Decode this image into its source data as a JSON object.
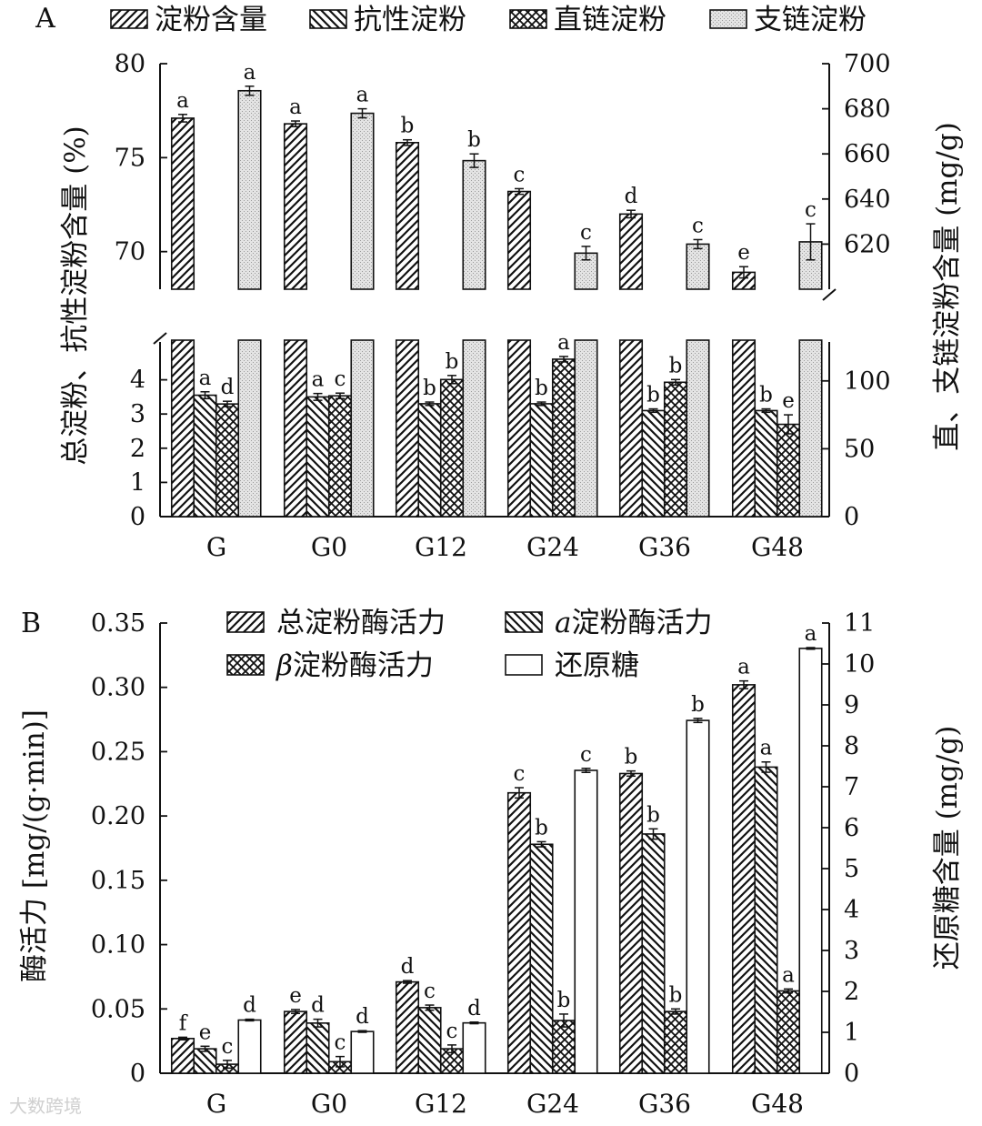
{
  "chart_data": [
    {
      "panel": "A",
      "type": "bar",
      "categories": [
        "G",
        "G0",
        "G12",
        "G24",
        "G36",
        "G48"
      ],
      "series": [
        {
          "name": "淀粉含量",
          "axis": "left",
          "pattern": "hatch-fwd",
          "values": [
            77.1,
            76.8,
            75.8,
            73.2,
            72.0,
            68.9
          ],
          "errors": [
            0.2,
            0.15,
            0.15,
            0.15,
            0.2,
            0.3
          ],
          "letters": [
            "a",
            "a",
            "b",
            "c",
            "d",
            "e"
          ]
        },
        {
          "name": "抗性淀粉",
          "axis": "left",
          "pattern": "hatch-back",
          "values": [
            3.55,
            3.5,
            3.3,
            3.3,
            3.1,
            3.1
          ],
          "errors": [
            0.1,
            0.1,
            0.05,
            0.05,
            0.05,
            0.05
          ],
          "letters": [
            "a",
            "a",
            "b",
            "b",
            "b",
            "b"
          ]
        },
        {
          "name": "直链淀粉",
          "axis": "right",
          "pattern": "crosshatch",
          "values": [
            83,
            89,
            101,
            116,
            99,
            68
          ],
          "errors": [
            2,
            2,
            3,
            2,
            2,
            7
          ],
          "letters": [
            "d",
            "c",
            "b",
            "a",
            "b",
            "e"
          ]
        },
        {
          "name": "支链淀粉",
          "axis": "right",
          "pattern": "dots",
          "values": [
            688,
            678,
            657,
            616,
            620,
            621
          ],
          "errors": [
            2,
            2,
            3,
            3,
            2,
            8
          ],
          "letters": [
            "a",
            "a",
            "b",
            "c",
            "c",
            "c"
          ]
        }
      ],
      "panel_label": "A",
      "ylabel_left": "总淀粉、抗性淀粉含量 (%)",
      "ylabel_right": "直、支链淀粉含量 (mg/g)",
      "left_axis_upper": {
        "range": [
          68,
          80
        ],
        "ticks": [
          "70",
          "75",
          "80"
        ]
      },
      "left_axis_lower": {
        "range": [
          0,
          5
        ],
        "ticks": [
          "0",
          "1",
          "2",
          "3",
          "4"
        ]
      },
      "right_axis_upper": {
        "range": [
          600,
          700
        ],
        "ticks": [
          "620",
          "640",
          "660",
          "680",
          "700"
        ]
      },
      "right_axis_lower": {
        "range": [
          0,
          126
        ],
        "ticks": [
          "0",
          "50",
          "100"
        ]
      }
    },
    {
      "panel": "B",
      "type": "bar",
      "categories": [
        "G",
        "G0",
        "G12",
        "G24",
        "G36",
        "G48"
      ],
      "series": [
        {
          "name": "总淀粉酶活力",
          "axis": "left",
          "pattern": "hatch-fwd",
          "values": [
            0.027,
            0.048,
            0.071,
            0.218,
            0.233,
            0.302
          ],
          "errors": [
            0.001,
            0.0015,
            0.001,
            0.004,
            0.002,
            0.003
          ],
          "letters": [
            "f",
            "e",
            "d",
            "c",
            "b",
            "a"
          ]
        },
        {
          "name": "a淀粉酶活力",
          "name_prefix": "a",
          "name_rest": "淀粉酶活力",
          "axis": "left",
          "pattern": "hatch-back",
          "values": [
            0.019,
            0.039,
            0.051,
            0.178,
            0.186,
            0.238
          ],
          "errors": [
            0.002,
            0.003,
            0.002,
            0.002,
            0.004,
            0.004
          ],
          "letters": [
            "e",
            "d",
            "c",
            "b",
            "b",
            "a"
          ]
        },
        {
          "name": "β淀粉酶活力",
          "name_prefix": "β",
          "name_rest": "淀粉酶活力",
          "axis": "left",
          "pattern": "crosshatch",
          "values": [
            0.007,
            0.009,
            0.019,
            0.041,
            0.048,
            0.064
          ],
          "errors": [
            0.003,
            0.004,
            0.003,
            0.005,
            0.002,
            0.0015
          ],
          "letters": [
            "c",
            "c",
            "c",
            "b",
            "b",
            "a"
          ]
        },
        {
          "name": "还原糖",
          "axis": "right",
          "pattern": "white",
          "values": [
            1.3,
            1.02,
            1.23,
            7.4,
            8.62,
            10.38
          ],
          "errors": [
            0.02,
            0.02,
            0.02,
            0.05,
            0.05,
            0.02
          ],
          "letters": [
            "d",
            "d",
            "d",
            "c",
            "b",
            "a"
          ]
        }
      ],
      "panel_label": "B",
      "ylabel_left": "酶活力 [mg/(g·min)]",
      "ylabel_right": "还原糖含量 (mg/g)",
      "left_axis": {
        "range": [
          0,
          0.35
        ],
        "ticks": [
          "0",
          "0.05",
          "0.10",
          "0.15",
          "0.20",
          "0.25",
          "0.30",
          "0.35"
        ]
      },
      "right_axis": {
        "range": [
          0,
          11
        ],
        "ticks": [
          "0",
          "1",
          "2",
          "3",
          "4",
          "5",
          "6",
          "7",
          "8",
          "9",
          "10",
          "11"
        ]
      }
    }
  ],
  "watermark": "大数跨境"
}
